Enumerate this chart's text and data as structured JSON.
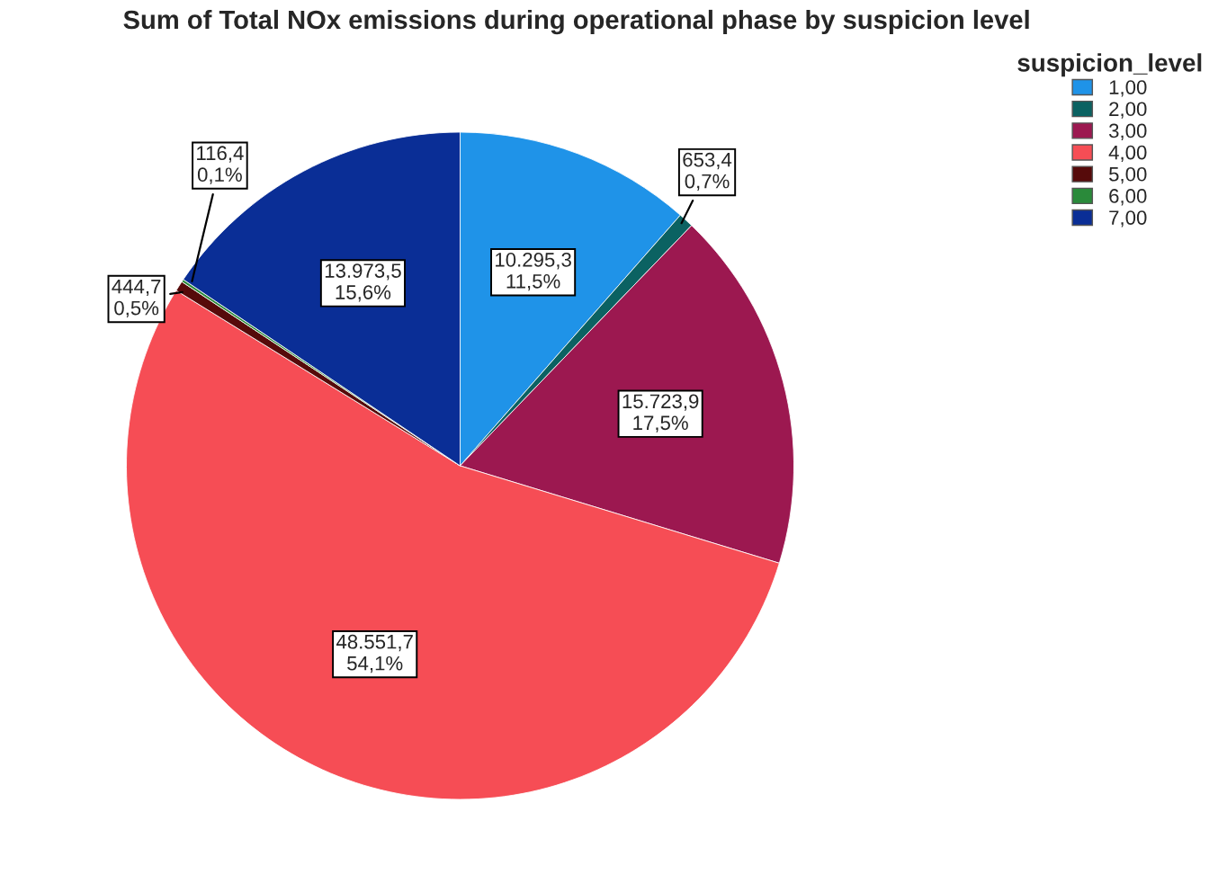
{
  "chart_data": {
    "type": "pie",
    "title": "Sum of Total NOx emissions during operational phase by suspicion level",
    "legend_title": "suspicion_level",
    "legend": "top right",
    "categories": [
      "1,00",
      "2,00",
      "3,00",
      "4,00",
      "5,00",
      "6,00",
      "7,00"
    ],
    "values": [
      10295.3,
      653.4,
      15723.9,
      48551.7,
      444.7,
      116.4,
      13973.5
    ],
    "value_labels": [
      "10.295,3\n11,5%",
      "653,4\n0,7%",
      "15.723,9\n17,5%",
      "48.551,7\n54,1%",
      "444,7\n0,5%",
      "116,4\n0,1%",
      "13.973,5\n15,6%"
    ],
    "colors": [
      "#1f93e8",
      "#0b6262",
      "#9c1850",
      "#f64d55",
      "#560a0a",
      "#2a8a3a",
      "#0a2e96"
    ]
  }
}
